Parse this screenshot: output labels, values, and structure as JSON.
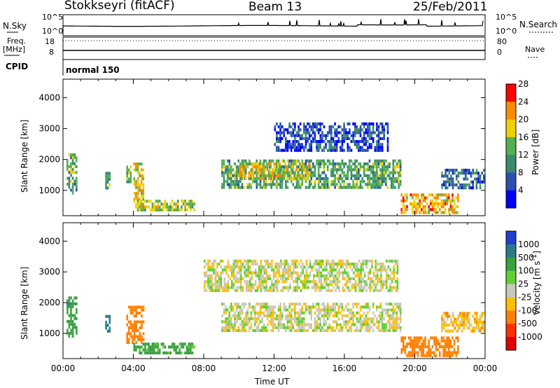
{
  "header": {
    "station": "Stokkseyri (fitACF)",
    "beam": "Beam 13",
    "date": "25/Feb/2011"
  },
  "strips": {
    "nsky": {
      "label": "N.Sky",
      "tick_top": "10^5",
      "tick_bottom": "10^0"
    },
    "nsearch": {
      "label": "N.Search",
      "tick_top": "10^5",
      "tick_bottom": "10^0"
    },
    "freq": {
      "label_line1": "Freq.",
      "label_line2": "[MHz]",
      "tick_top": "18",
      "tick_bottom": "8"
    },
    "nave": {
      "label": "Nave",
      "tick_top": "80",
      "tick_bottom": "0"
    },
    "cpid": {
      "label": "CPID",
      "mode": "normal 150"
    }
  },
  "chart_data": [
    {
      "type": "heatmap",
      "panel": "power",
      "ylabel": "Slant Range [km]",
      "xlabel": "",
      "yticks": [
        1000,
        2000,
        3000,
        4000
      ],
      "ylim": [
        180,
        4600
      ],
      "colorbar_label": "Power [dB]",
      "colorbar_ticks": [
        4,
        8,
        12,
        16,
        20,
        24,
        28
      ],
      "colorbar_colors": [
        "#0000ff",
        "#2a4fb0",
        "#3a8a6e",
        "#52b050",
        "#f0d000",
        "#ff8c00",
        "#ff0000"
      ],
      "regions": [
        {
          "t0": 0.2,
          "t1": 0.8,
          "r0": 900,
          "r1": 2200,
          "level": 14
        },
        {
          "t0": 2.4,
          "t1": 2.7,
          "r0": 1100,
          "r1": 1600,
          "level": 14
        },
        {
          "t0": 3.6,
          "t1": 3.9,
          "r0": 1300,
          "r1": 1800,
          "level": 16
        },
        {
          "t0": 4.0,
          "t1": 4.6,
          "r0": 700,
          "r1": 1900,
          "level": 20
        },
        {
          "t0": 4.0,
          "t1": 7.5,
          "r0": 350,
          "r1": 700,
          "level": 18
        },
        {
          "t0": 9.0,
          "t1": 19.2,
          "r0": 1100,
          "r1": 2000,
          "level": 14
        },
        {
          "t0": 10.0,
          "t1": 14.0,
          "r0": 1400,
          "r1": 1900,
          "level": 20
        },
        {
          "t0": 12.0,
          "t1": 18.5,
          "r0": 2300,
          "r1": 3200,
          "level": 7
        },
        {
          "t0": 19.2,
          "t1": 22.5,
          "r0": 300,
          "r1": 900,
          "level": 22
        },
        {
          "t0": 21.5,
          "t1": 23.9,
          "r0": 1100,
          "r1": 1700,
          "level": 10
        }
      ]
    },
    {
      "type": "heatmap",
      "panel": "velocity",
      "ylabel": "Slant Range [km]",
      "xlabel": "Time UT",
      "x_ticklabels": [
        "00:00",
        "04:00",
        "08:00",
        "12:00",
        "16:00",
        "20:00",
        "00:00"
      ],
      "yticks": [
        1000,
        2000,
        3000,
        4000
      ],
      "ylim": [
        180,
        4600
      ],
      "colorbar_label": "Velocity [m s^-1]",
      "colorbar_ticks": [
        1000,
        500,
        100,
        25,
        -25,
        -100,
        -500,
        -1000
      ],
      "colorbar_colors": [
        "#1f3fd0",
        "#2a7a8a",
        "#3aa040",
        "#60d030",
        "#c8c8c0",
        "#ffc000",
        "#ff8000",
        "#ff3000",
        "#e00000"
      ],
      "regions": [
        {
          "t0": 0.2,
          "t1": 0.8,
          "r0": 900,
          "r1": 2200,
          "v": 200
        },
        {
          "t0": 2.4,
          "t1": 2.7,
          "r0": 1100,
          "r1": 1600,
          "v": 300
        },
        {
          "t0": 3.6,
          "t1": 4.6,
          "r0": 700,
          "r1": 1900,
          "v": -200
        },
        {
          "t0": 4.0,
          "t1": 7.5,
          "r0": 350,
          "r1": 700,
          "v": 150
        },
        {
          "t0": 9.0,
          "t1": 19.2,
          "r0": 1100,
          "r1": 2000,
          "v": 0
        },
        {
          "t0": 8.0,
          "t1": 19.0,
          "r0": 2400,
          "r1": 3400,
          "v": 0
        },
        {
          "t0": 19.2,
          "t1": 22.5,
          "r0": 300,
          "r1": 900,
          "v": -300
        },
        {
          "t0": 21.5,
          "t1": 23.9,
          "r0": 1100,
          "r1": 1700,
          "v": -60
        }
      ]
    }
  ]
}
